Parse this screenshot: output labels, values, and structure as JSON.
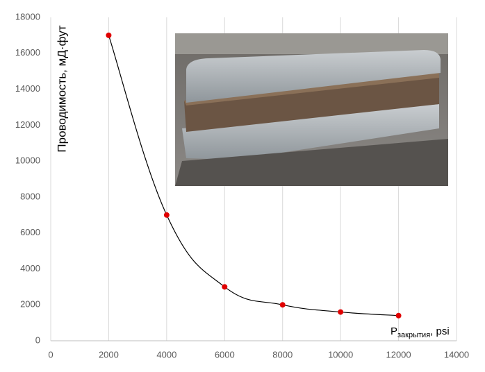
{
  "chart_data": {
    "type": "scatter",
    "y_label": "Проводимость, мД·фут",
    "x_label": {
      "main": "P",
      "sub": "закрытия",
      "suffix": ", psi"
    },
    "x": [
      2000,
      4000,
      6000,
      8000,
      10000,
      12000
    ],
    "values": [
      17000,
      7000,
      3000,
      2000,
      1600,
      1400
    ],
    "color": "#e00000",
    "line_color": "#000000",
    "xlim": [
      0,
      14000
    ],
    "xticks": [
      0,
      2000,
      4000,
      6000,
      8000,
      10000,
      12000,
      14000
    ],
    "ylim": [
      0,
      18000
    ],
    "yticks": [
      0,
      2000,
      4000,
      6000,
      8000,
      10000,
      12000,
      14000,
      16000,
      18000
    ],
    "grid": true
  }
}
